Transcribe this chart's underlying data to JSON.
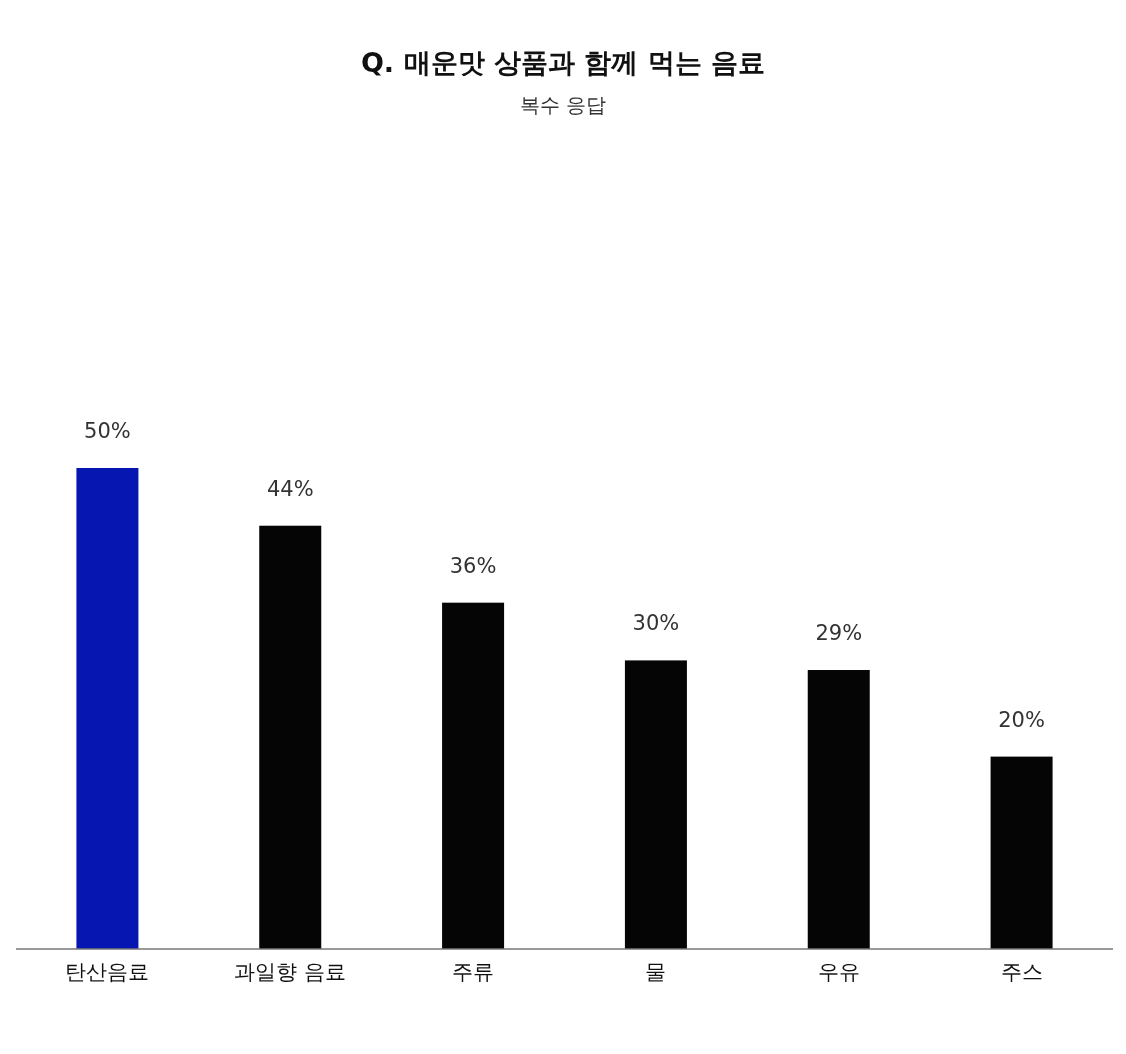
{
  "chart_data": {
    "type": "bar",
    "title": "Q. 매운맛 상품과 함께 먹는 음료",
    "subtitle": "복수 응답",
    "categories": [
      "탄산음료",
      "과일향 음료",
      "주류",
      "물",
      "우유",
      "주스"
    ],
    "values": [
      50,
      44,
      36,
      30,
      29,
      20
    ],
    "value_labels": [
      "50%",
      "44%",
      "36%",
      "30%",
      "29%",
      "20%"
    ],
    "colors": [
      "#0616b0",
      "#050505",
      "#050505",
      "#050505",
      "#050505",
      "#050505"
    ]
  }
}
